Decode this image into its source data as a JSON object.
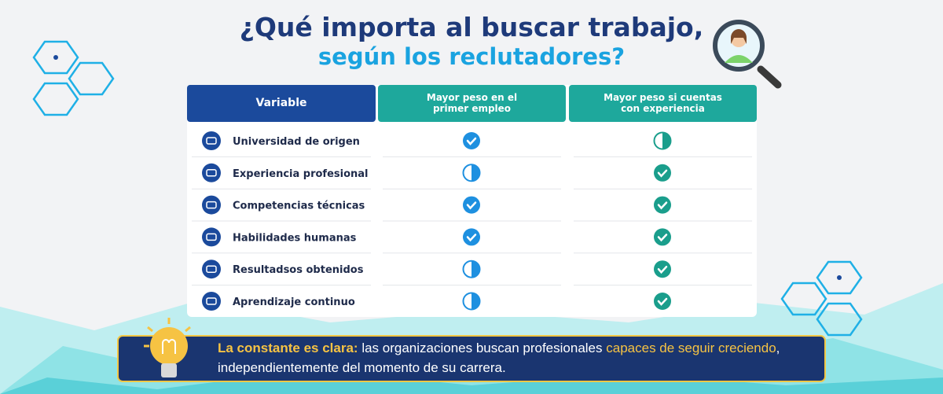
{
  "title": {
    "line1": "¿Qué importa al buscar trabajo,",
    "line2": "según los reclutadores?"
  },
  "table": {
    "headers": [
      [
        "Variable"
      ],
      [
        "Mayor peso en el",
        "primer empleo"
      ],
      [
        "Mayor peso si cuentas",
        "con experiencia"
      ]
    ],
    "rows": [
      {
        "label": "Universidad de origen",
        "marks": [
          "full",
          "half"
        ]
      },
      {
        "label": "Experiencia profesional",
        "marks": [
          "half",
          "full"
        ]
      },
      {
        "label": "Competencias técnicas",
        "marks": [
          "full",
          "full"
        ]
      },
      {
        "label": "Habilidades humanas",
        "marks": [
          "full",
          "full"
        ]
      },
      {
        "label": "Resultadsos obtenidos",
        "marks": [
          "half",
          "full"
        ]
      },
      {
        "label": "Aprendizaje continuo",
        "marks": [
          "half",
          "full"
        ]
      }
    ]
  },
  "footer": {
    "lead": "La constante es clara:",
    "text1": "las organizaciones buscan profesionales",
    "highlight": "capaces de seguir creciendo",
    "text2": ",",
    "line2": "independientemente del momento de su carrera."
  }
}
